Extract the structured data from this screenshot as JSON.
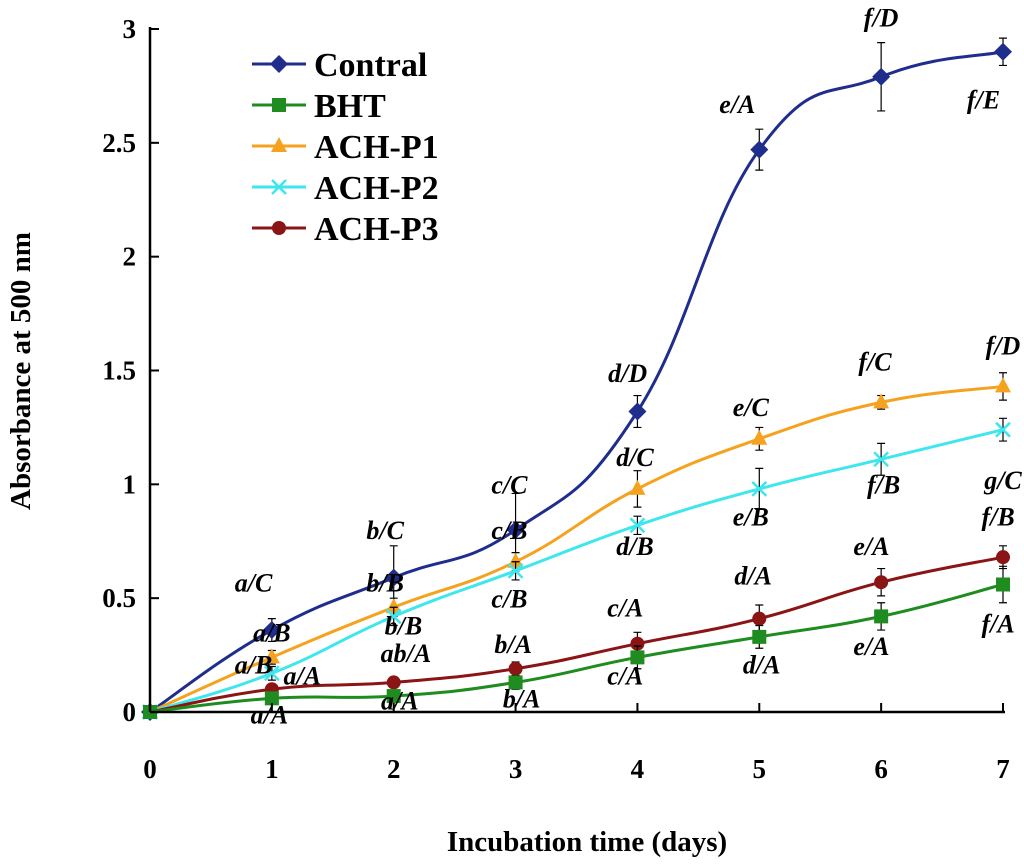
{
  "chart_data": {
    "type": "line",
    "title": "",
    "xlabel": "Incubation time (days)",
    "ylabel": "Absorbance at 500 nm",
    "x": [
      0,
      1,
      2,
      3,
      4,
      5,
      6,
      7
    ],
    "xlim": [
      0,
      7
    ],
    "ylim": [
      0,
      3
    ],
    "xticks": [
      "0",
      "1",
      "2",
      "3",
      "4",
      "5",
      "6",
      "7"
    ],
    "yticks": [
      "0",
      "0.5",
      "1",
      "1.5",
      "2",
      "2.5",
      "3"
    ],
    "grid": false,
    "legend_position": "top-left",
    "series": [
      {
        "name": "Contral",
        "color": "#1f2d8c",
        "marker": "diamond",
        "values": [
          0,
          0.36,
          0.59,
          0.8,
          1.32,
          2.47,
          2.79,
          2.9
        ],
        "errors": [
          0,
          0.05,
          0.14,
          0.16,
          0.07,
          0.09,
          0.15,
          0.06
        ]
      },
      {
        "name": "BHT",
        "color": "#1f8c1f",
        "marker": "square",
        "values": [
          0,
          0.06,
          0.07,
          0.13,
          0.24,
          0.33,
          0.42,
          0.56
        ],
        "errors": [
          0,
          0.02,
          0.02,
          0.03,
          0.05,
          0.05,
          0.06,
          0.08
        ]
      },
      {
        "name": "ACH-P1",
        "color": "#f5a21e",
        "marker": "triangle",
        "values": [
          0,
          0.24,
          0.46,
          0.66,
          0.98,
          1.2,
          1.36,
          1.43
        ],
        "errors": [
          0,
          0.03,
          0.04,
          0.04,
          0.08,
          0.05,
          0.03,
          0.06
        ]
      },
      {
        "name": "ACH-P2",
        "color": "#3ee6ee",
        "marker": "x",
        "values": [
          0,
          0.17,
          0.42,
          0.62,
          0.82,
          0.98,
          1.11,
          1.24
        ],
        "errors": [
          0,
          0.03,
          0.04,
          0.04,
          0.04,
          0.09,
          0.07,
          0.05
        ]
      },
      {
        "name": "ACH-P3",
        "color": "#8b1414",
        "marker": "circle",
        "values": [
          0,
          0.1,
          0.13,
          0.19,
          0.3,
          0.41,
          0.57,
          0.68
        ],
        "errors": [
          0,
          0.02,
          0.02,
          0.03,
          0.05,
          0.06,
          0.06,
          0.05
        ]
      }
    ],
    "annotations": [
      {
        "text": "a/C",
        "x": 0.85,
        "y": 0.53
      },
      {
        "text": "a/B",
        "x": 1.0,
        "y": 0.31
      },
      {
        "text": "a/B",
        "x": 0.85,
        "y": 0.17
      },
      {
        "text": "a/A",
        "x": 1.25,
        "y": 0.12
      },
      {
        "text": "a/A",
        "x": 0.98,
        "y": -0.05
      },
      {
        "text": "b/C",
        "x": 1.93,
        "y": 0.76
      },
      {
        "text": "b/B",
        "x": 1.93,
        "y": 0.53
      },
      {
        "text": "b/B",
        "x": 2.08,
        "y": 0.34
      },
      {
        "text": "ab/A",
        "x": 2.1,
        "y": 0.22
      },
      {
        "text": "a/A",
        "x": 2.05,
        "y": 0.01
      },
      {
        "text": "c/C",
        "x": 2.95,
        "y": 0.96
      },
      {
        "text": "c/B",
        "x": 2.95,
        "y": 0.76
      },
      {
        "text": "c/B",
        "x": 2.95,
        "y": 0.46
      },
      {
        "text": "b/A",
        "x": 2.98,
        "y": 0.26
      },
      {
        "text": "b/A",
        "x": 3.05,
        "y": 0.02
      },
      {
        "text": "d/D",
        "x": 3.92,
        "y": 1.45
      },
      {
        "text": "d/C",
        "x": 3.98,
        "y": 1.08
      },
      {
        "text": "d/B",
        "x": 3.98,
        "y": 0.69
      },
      {
        "text": "c/A",
        "x": 3.9,
        "y": 0.42
      },
      {
        "text": "c/A",
        "x": 3.9,
        "y": 0.12
      },
      {
        "text": "e/A",
        "x": 4.82,
        "y": 2.63
      },
      {
        "text": "e/C",
        "x": 4.93,
        "y": 1.3
      },
      {
        "text": "e/B",
        "x": 4.93,
        "y": 0.82
      },
      {
        "text": "d/A",
        "x": 4.95,
        "y": 0.56
      },
      {
        "text": "d/A",
        "x": 5.02,
        "y": 0.17
      },
      {
        "text": "f/D",
        "x": 6.0,
        "y": 3.01
      },
      {
        "text": "f/E",
        "x": 6.84,
        "y": 2.65
      },
      {
        "text": "f/C",
        "x": 5.95,
        "y": 1.5
      },
      {
        "text": "f/B",
        "x": 6.02,
        "y": 0.96
      },
      {
        "text": "e/A",
        "x": 5.92,
        "y": 0.69
      },
      {
        "text": "e/A",
        "x": 5.92,
        "y": 0.25
      },
      {
        "text": "f/D",
        "x": 7.0,
        "y": 1.57
      },
      {
        "text": "g/C",
        "x": 7.0,
        "y": 0.98
      },
      {
        "text": "f/B",
        "x": 6.96,
        "y": 0.82
      },
      {
        "text": "f/A",
        "x": 6.96,
        "y": 0.35
      }
    ]
  }
}
